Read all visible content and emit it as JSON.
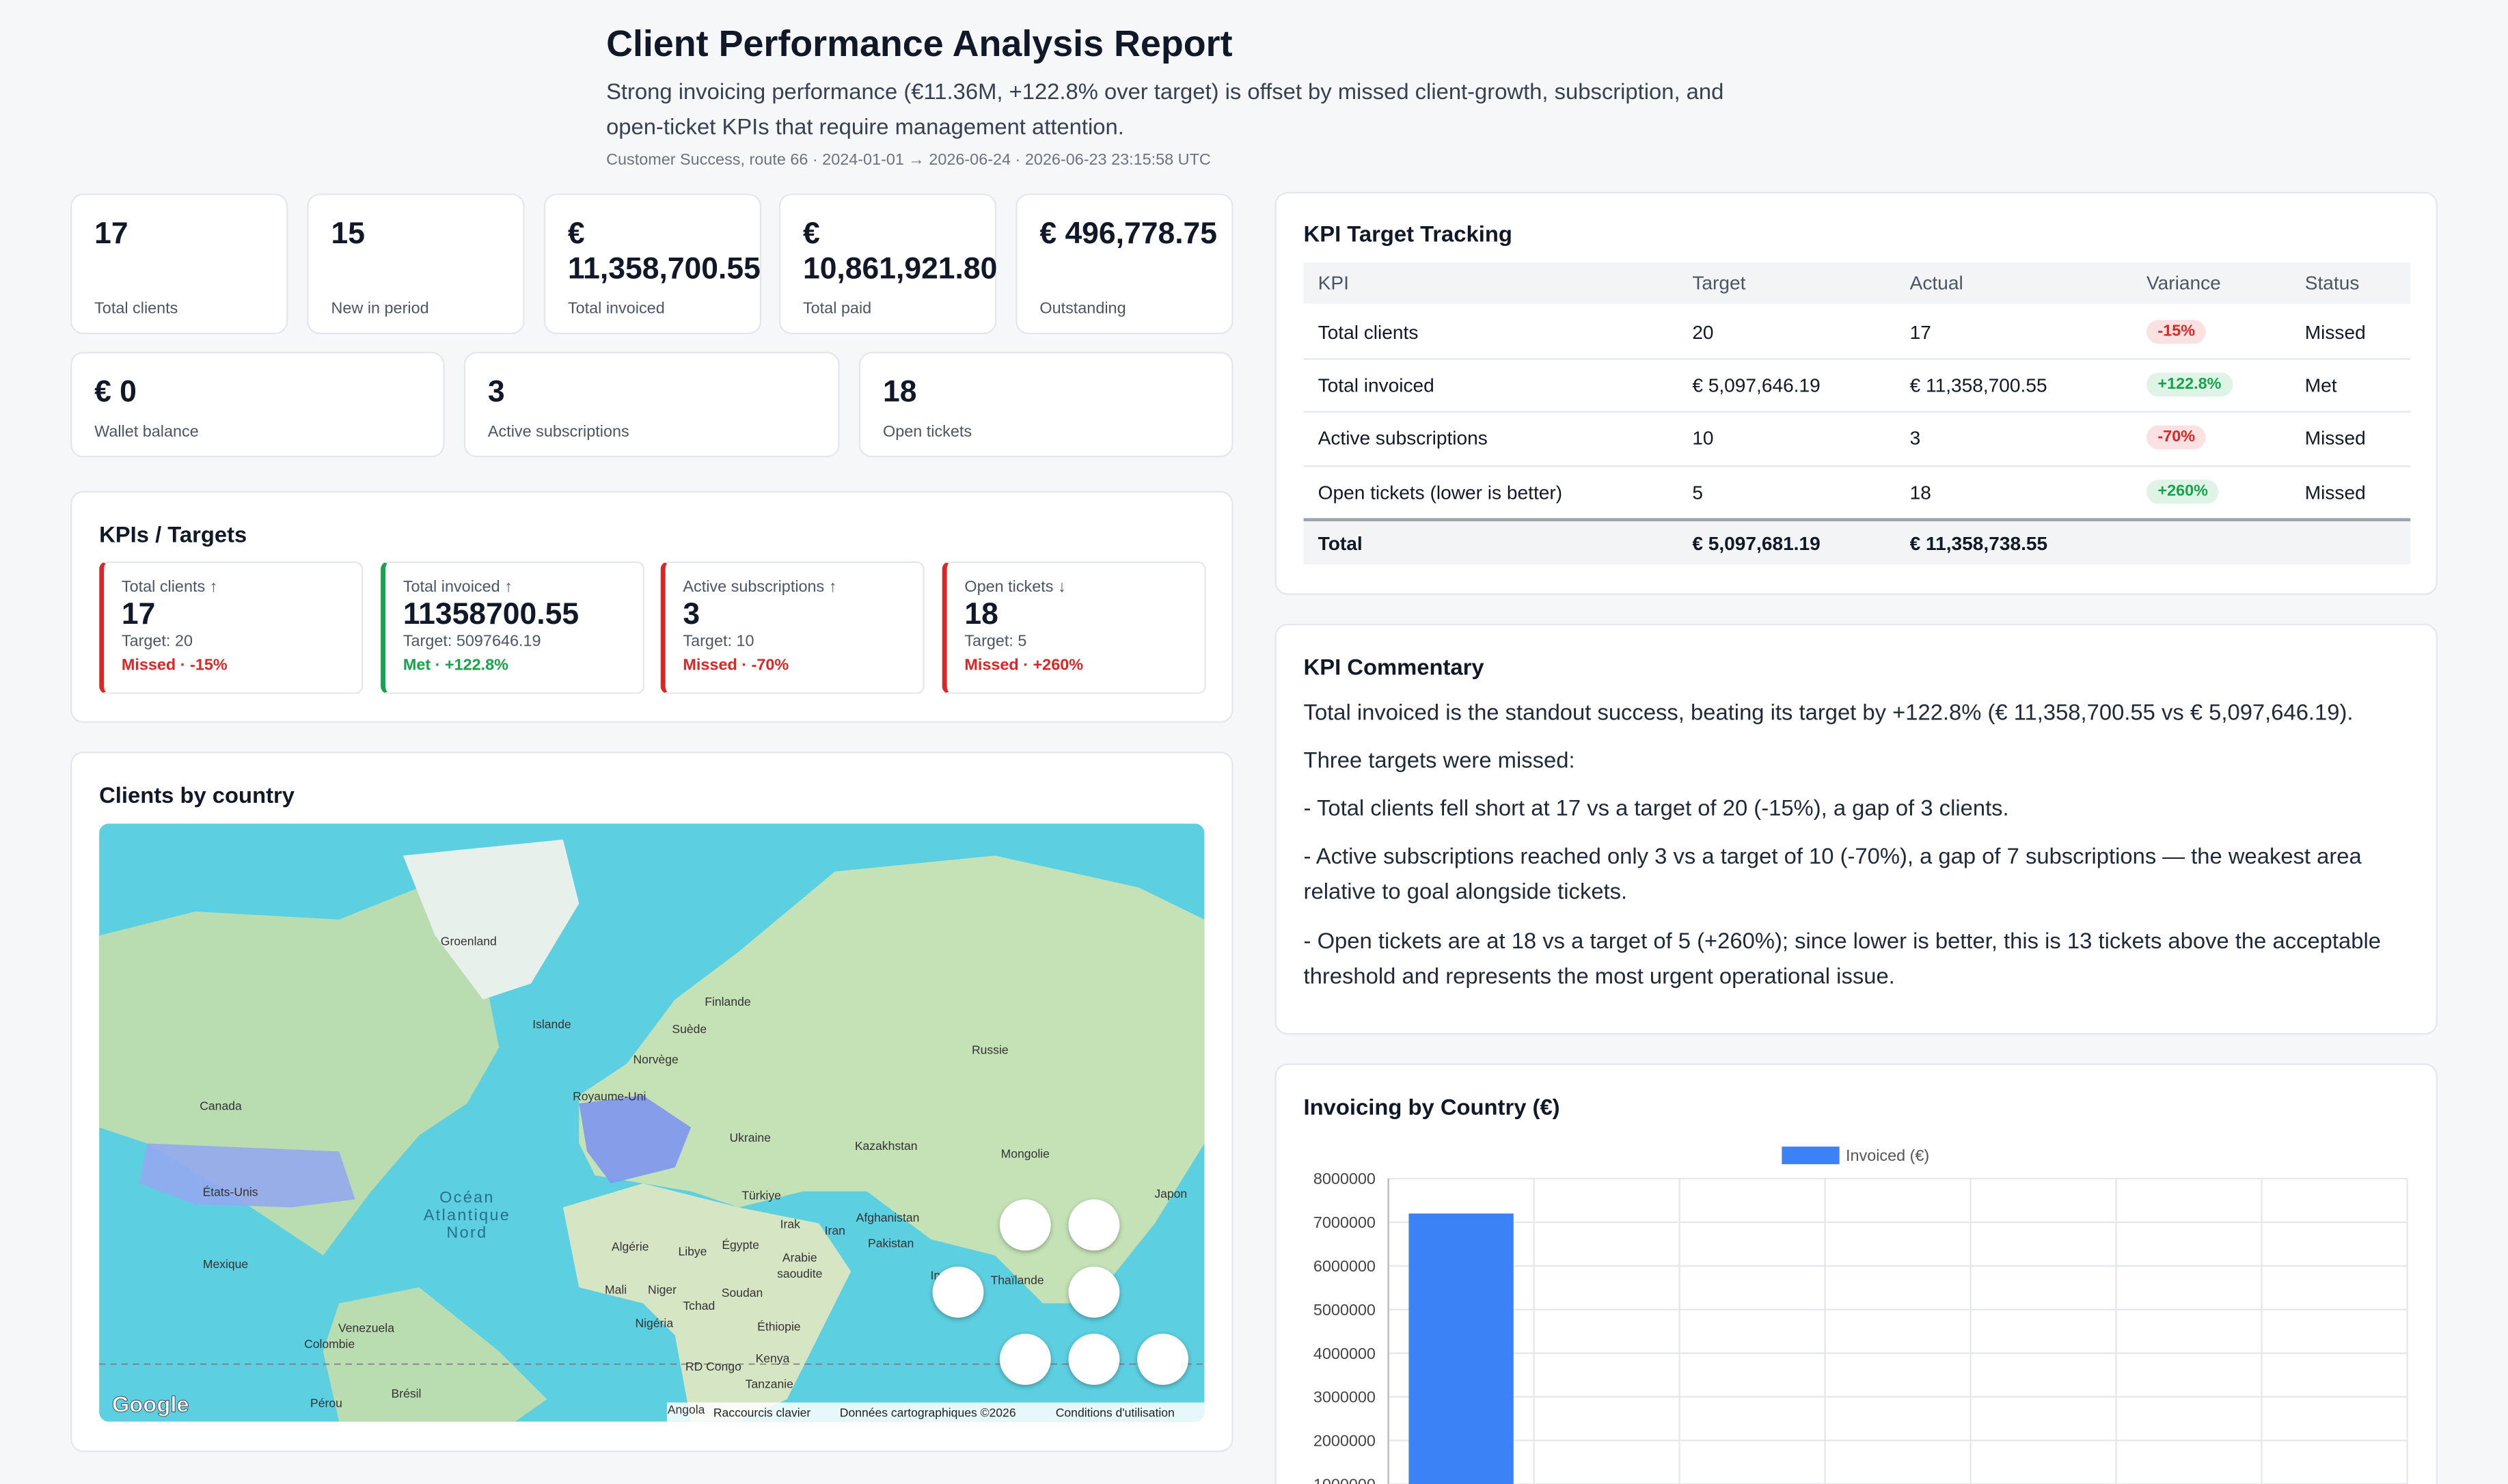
{
  "header": {
    "title": "Client Performance Analysis Report",
    "subtitle": "Strong invoicing performance (€11.36M, +122.8% over target) is offset by missed client-growth, subscription, and open-ticket KPIs that require management attention.",
    "meta": "Customer Success, route 66 · 2024-01-01 → 2026-06-24 · 2026-06-23 23:15:58 UTC"
  },
  "stats": [
    {
      "value": "17",
      "label": "Total clients"
    },
    {
      "value": "15",
      "label": "New in period"
    },
    {
      "value": "€ 11,358,700.55",
      "label": "Total invoiced"
    },
    {
      "value": "€ 10,861,921.80",
      "label": "Total paid"
    },
    {
      "value": "€ 496,778.75",
      "label": "Outstanding"
    },
    {
      "value": "€ 0",
      "label": "Wallet balance"
    },
    {
      "value": "3",
      "label": "Active subscriptions"
    },
    {
      "value": "18",
      "label": "Open tickets"
    }
  ],
  "kpis": {
    "title": "KPIs / Targets",
    "items": [
      {
        "label": "Total clients ↑",
        "value": "17",
        "target": "Target: 20",
        "status": "Missed · -15%",
        "color": "#dc2626"
      },
      {
        "label": "Total invoiced ↑",
        "value": "11358700.55",
        "target": "Target: 5097646.19",
        "status": "Met · +122.8%",
        "color": "#16a34a"
      },
      {
        "label": "Active subscriptions ↑",
        "value": "3",
        "target": "Target: 10",
        "status": "Missed · -70%",
        "color": "#dc2626"
      },
      {
        "label": "Open tickets ↓",
        "value": "18",
        "target": "Target: 5",
        "status": "Missed · +260%",
        "color": "#dc2626"
      }
    ]
  },
  "map": {
    "title": "Clients by country",
    "labels": [
      "Groenland",
      "Islande",
      "Canada",
      "Finlande",
      "Suède",
      "Norvège",
      "Russie",
      "Royaume-Uni",
      "Ukraine",
      "Kazakhstan",
      "Mongolie",
      "États-Unis",
      "Océan",
      "Atlantique",
      "Nord",
      "Türkiye",
      "Irak",
      "Iran",
      "Afghanistan",
      "Pakistan",
      "Japon",
      "Algérie",
      "Libye",
      "Égypte",
      "Arabie",
      "saoudite",
      "Inde",
      "Thaïlande",
      "Mexique",
      "Mali",
      "Niger",
      "Tchad",
      "Soudan",
      "Éthiopie",
      "Nigéria",
      "Venezuela",
      "Colombie",
      "RD Congo",
      "Kenya",
      "Tanzanie",
      "Pérou",
      "Brésil",
      "Angola"
    ],
    "logo": "Google",
    "footer": [
      "Raccourcis clavier",
      "Données cartographiques ©2026",
      "Conditions d'utilisation"
    ]
  },
  "table": {
    "title": "KPI Target Tracking",
    "columns": [
      "KPI",
      "Target",
      "Actual",
      "Variance",
      "Status"
    ],
    "rows": [
      {
        "cells": [
          "Total clients",
          "20",
          "17",
          "-15%",
          "Missed"
        ],
        "color": "#dc2626"
      },
      {
        "cells": [
          "Total invoiced",
          "€ 5,097,646.19",
          "€ 11,358,700.55",
          "+122.8%",
          "Met"
        ],
        "color": "#16a34a"
      },
      {
        "cells": [
          "Active subscriptions",
          "10",
          "3",
          "-70%",
          "Missed"
        ],
        "color": "#dc2626"
      },
      {
        "cells": [
          "Open tickets (lower is better)",
          "5",
          "18",
          "+260%",
          "Missed"
        ],
        "color": "#16a34a"
      }
    ],
    "total": [
      "Total",
      "€ 5,097,681.19",
      "€ 11,358,738.55"
    ]
  },
  "commentary": {
    "title": "KPI Commentary",
    "paragraphs": [
      "Total invoiced is the standout success, beating its target by +122.8% (€ 11,358,700.55 vs € 5,097,646.19).",
      "Three targets were missed:",
      "- Total clients fell short at 17 vs a target of 20 (-15%), a gap of 3 clients.",
      "- Active subscriptions reached only 3 vs a target of 10 (-70%), a gap of 7 subscriptions — the weakest area relative to goal alongside tickets.",
      "- Open tickets are at 18 vs a target of 5 (+260%); since lower is better, this is 13 tickets above the acceptable threshold and represents the most urgent operational issue."
    ]
  },
  "chart_data": {
    "type": "bar",
    "title": "Invoicing by Country (€)",
    "categories": [
      null,
      null,
      null,
      null,
      null,
      null,
      null
    ],
    "series": [
      {
        "name": "Invoiced (€)",
        "color": "#3b82f6",
        "values": [
          7200000,
          null,
          null,
          null,
          null,
          null,
          null
        ]
      }
    ],
    "ylim": [
      0,
      8000000
    ],
    "yticks": [
      1000000,
      2000000,
      3000000,
      4000000,
      5000000,
      6000000,
      7000000,
      8000000
    ],
    "grid": true,
    "legend": "top"
  }
}
